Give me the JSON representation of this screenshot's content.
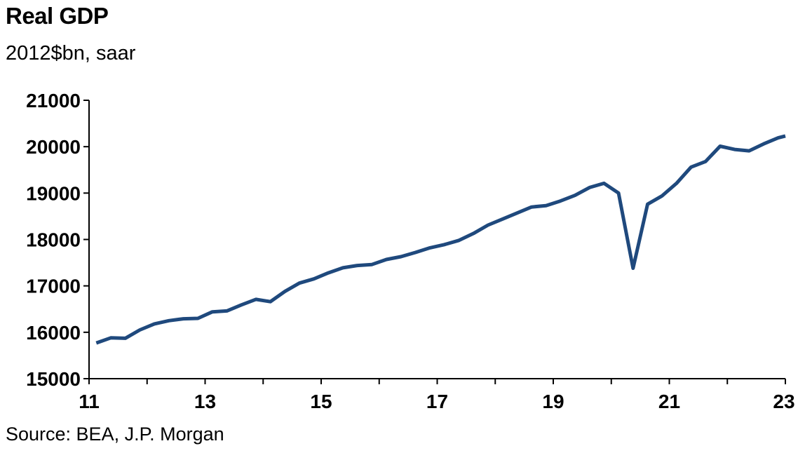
{
  "chart_data": {
    "type": "line",
    "title": "Real GDP",
    "subtitle": "2012$bn, saar",
    "source": "Source: BEA, J.P. Morgan",
    "xlabel": "",
    "ylabel": "",
    "ylim": [
      15000,
      21000
    ],
    "xlim": [
      2011.0,
      2023.0
    ],
    "yticks": [
      "15000",
      "16000",
      "17000",
      "18000",
      "19000",
      "20000",
      "21000"
    ],
    "xticks": [
      "11",
      "13",
      "15",
      "17",
      "19",
      "21",
      "23"
    ],
    "grid": false,
    "legend": "none",
    "colors": {
      "line": "#1f497d",
      "axis": "#000000"
    },
    "series": [
      {
        "x": [
          2011.125,
          2011.375,
          2011.625,
          2011.875,
          2012.125,
          2012.375,
          2012.625,
          2012.875,
          2013.125,
          2013.375,
          2013.625,
          2013.875,
          2014.125,
          2014.375,
          2014.625,
          2014.875,
          2015.125,
          2015.375,
          2015.625,
          2015.875,
          2016.125,
          2016.375,
          2016.625,
          2016.875,
          2017.125,
          2017.375,
          2017.625,
          2017.875,
          2018.125,
          2018.375,
          2018.625,
          2018.875,
          2019.125,
          2019.375,
          2019.625,
          2019.875,
          2020.125,
          2020.375,
          2020.625,
          2020.875,
          2021.125,
          2021.375,
          2021.625,
          2021.875,
          2022.125,
          2022.375,
          2022.625,
          2022.875,
          2023.0
        ],
        "values": [
          15770,
          15880,
          15870,
          16050,
          16180,
          16250,
          16290,
          16300,
          16440,
          16460,
          16590,
          16710,
          16660,
          16880,
          17060,
          17150,
          17280,
          17390,
          17440,
          17460,
          17570,
          17630,
          17720,
          17820,
          17890,
          17980,
          18130,
          18310,
          18440,
          18570,
          18700,
          18730,
          18830,
          18950,
          19120,
          19210,
          19000,
          17380,
          18760,
          18940,
          19210,
          19560,
          19680,
          20010,
          19940,
          19910,
          20060,
          20190,
          20230
        ]
      }
    ]
  }
}
